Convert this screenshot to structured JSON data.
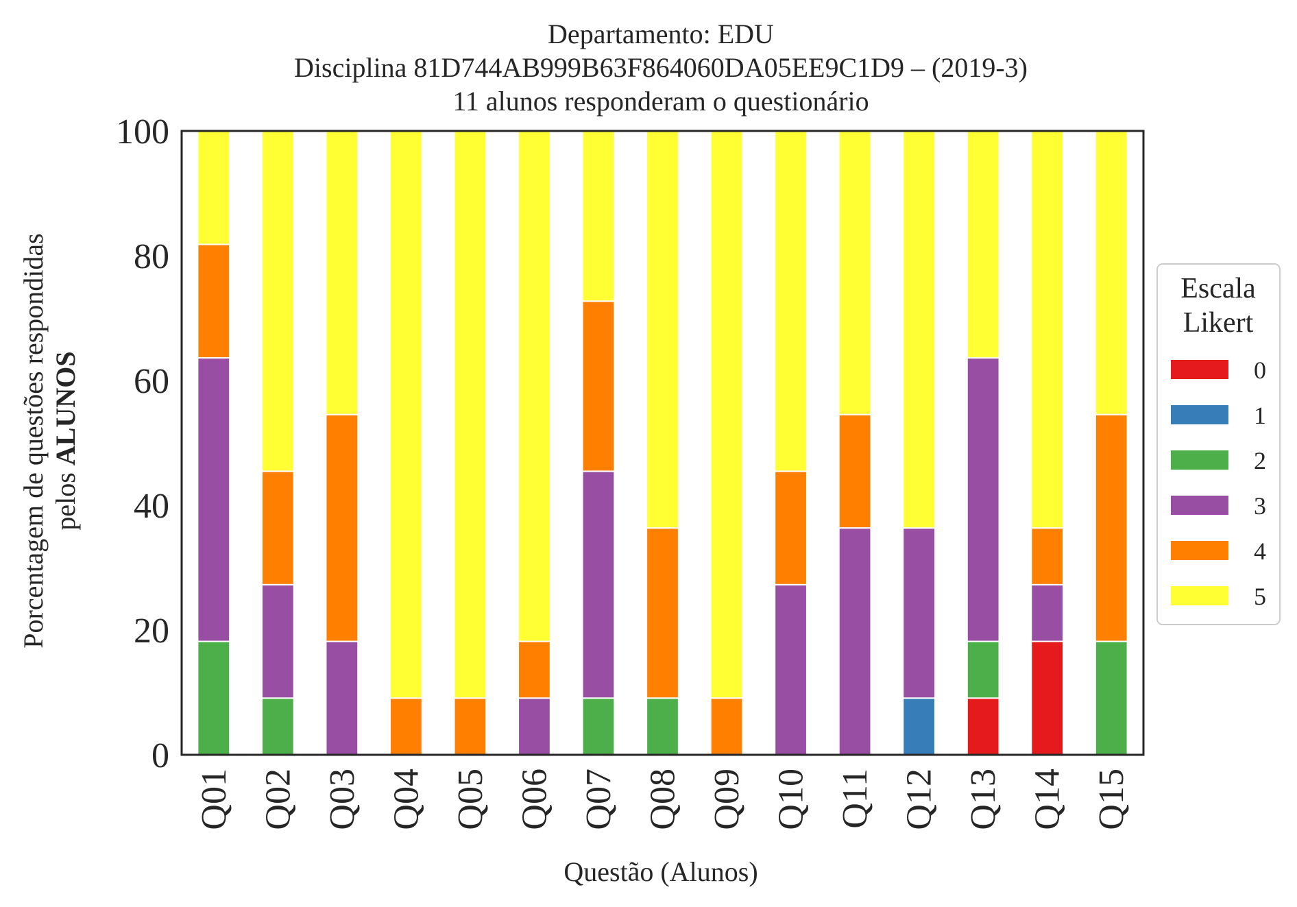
{
  "chart_data": {
    "type": "bar",
    "stacked": true,
    "title_lines": [
      "Departamento: EDU",
      "Disciplina 81D744AB999B63F864060DA05EE9C1D9 – (2019-3)",
      "11 alunos responderam o questionário"
    ],
    "xlabel": "Questão (Alunos)",
    "ylabel_line1": "Porcentagem de questões respondidas",
    "ylabel_line2_prefix": "pelos ",
    "ylabel_line2_bold": "ALUNOS",
    "ylim": [
      0,
      100
    ],
    "yticks": [
      "0",
      "20",
      "40",
      "60",
      "80",
      "100"
    ],
    "grid": false,
    "legend": {
      "title_lines": [
        "Escala",
        "Likert"
      ],
      "placement": "right-center"
    },
    "categories": [
      "Q01",
      "Q02",
      "Q03",
      "Q04",
      "Q05",
      "Q06",
      "Q07",
      "Q08",
      "Q09",
      "Q10",
      "Q11",
      "Q12",
      "Q13",
      "Q14",
      "Q15"
    ],
    "series": [
      {
        "name": "0",
        "color": "#e41a1c",
        "values": [
          0,
          0,
          0,
          0,
          0,
          0,
          0,
          0,
          0,
          0,
          0,
          0,
          9.09,
          18.18,
          0
        ]
      },
      {
        "name": "1",
        "color": "#377eb8",
        "values": [
          0,
          0,
          0,
          0,
          0,
          0,
          0,
          0,
          0,
          0,
          0,
          9.09,
          0,
          0,
          0
        ]
      },
      {
        "name": "2",
        "color": "#4daf4a",
        "values": [
          18.18,
          9.09,
          0,
          0,
          0,
          0,
          9.09,
          9.09,
          0,
          0,
          0,
          0,
          9.09,
          0,
          18.18
        ]
      },
      {
        "name": "3",
        "color": "#984ea3",
        "values": [
          45.45,
          18.18,
          18.18,
          0,
          0,
          9.09,
          36.36,
          0,
          0,
          27.27,
          36.36,
          27.27,
          45.45,
          9.09,
          0
        ]
      },
      {
        "name": "4",
        "color": "#ff7f00",
        "values": [
          18.18,
          18.18,
          36.36,
          9.09,
          9.09,
          9.09,
          27.27,
          27.27,
          9.09,
          18.18,
          18.18,
          0,
          0,
          9.09,
          36.36
        ]
      },
      {
        "name": "5",
        "color": "#ffff33",
        "values": [
          18.18,
          54.55,
          45.45,
          90.91,
          90.91,
          81.82,
          27.27,
          63.64,
          90.91,
          54.55,
          45.45,
          63.64,
          36.36,
          63.64,
          45.45
        ]
      }
    ]
  }
}
